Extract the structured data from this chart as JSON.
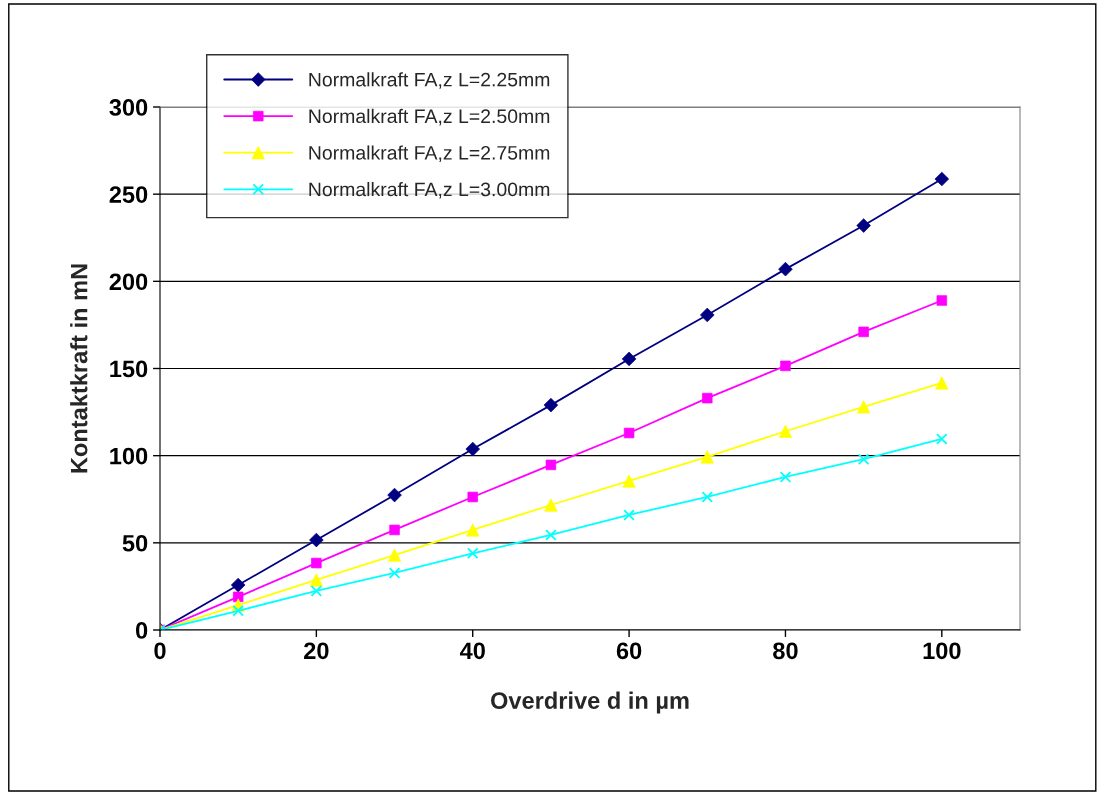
{
  "chart_data": {
    "type": "line",
    "xlabel": "Overdrive d in µm",
    "ylabel": "Kontaktkraft in mN",
    "x": [
      0,
      10,
      20,
      30,
      40,
      50,
      60,
      70,
      80,
      90,
      100
    ],
    "series": [
      {
        "name": "Normalkraft FA,z L=2.25mm",
        "color": "#000080",
        "marker": "diamond",
        "values": [
          0,
          25.8,
          51.6,
          77.4,
          103.8,
          129,
          155.5,
          180.7,
          207,
          232,
          258.7
        ]
      },
      {
        "name": "Normalkraft FA,z L=2.50mm",
        "color": "#ff00ff",
        "marker": "square",
        "values": [
          0,
          19,
          38.4,
          57.4,
          76.3,
          94.7,
          113,
          133,
          151.5,
          171,
          189
        ]
      },
      {
        "name": "Normalkraft FA,z L=2.75mm",
        "color": "#ffff00",
        "marker": "triangle",
        "values": [
          0,
          14.3,
          28.7,
          43,
          57.4,
          71.7,
          85.5,
          99.3,
          114,
          128,
          141.7
        ]
      },
      {
        "name": "Normalkraft FA,z L=3.00mm",
        "color": "#00ffff",
        "marker": "cross",
        "values": [
          0,
          11,
          22.4,
          32.7,
          44,
          54.5,
          66,
          76.3,
          87.8,
          98,
          109.6
        ]
      }
    ],
    "xlim": [
      0,
      110
    ],
    "xticks": [
      0,
      20,
      40,
      60,
      80,
      100
    ],
    "ylim": [
      0,
      300
    ],
    "yticks": [
      0,
      50,
      100,
      150,
      200,
      250,
      300
    ],
    "grid": "y",
    "legend": "top left",
    "line_style": "solid"
  }
}
